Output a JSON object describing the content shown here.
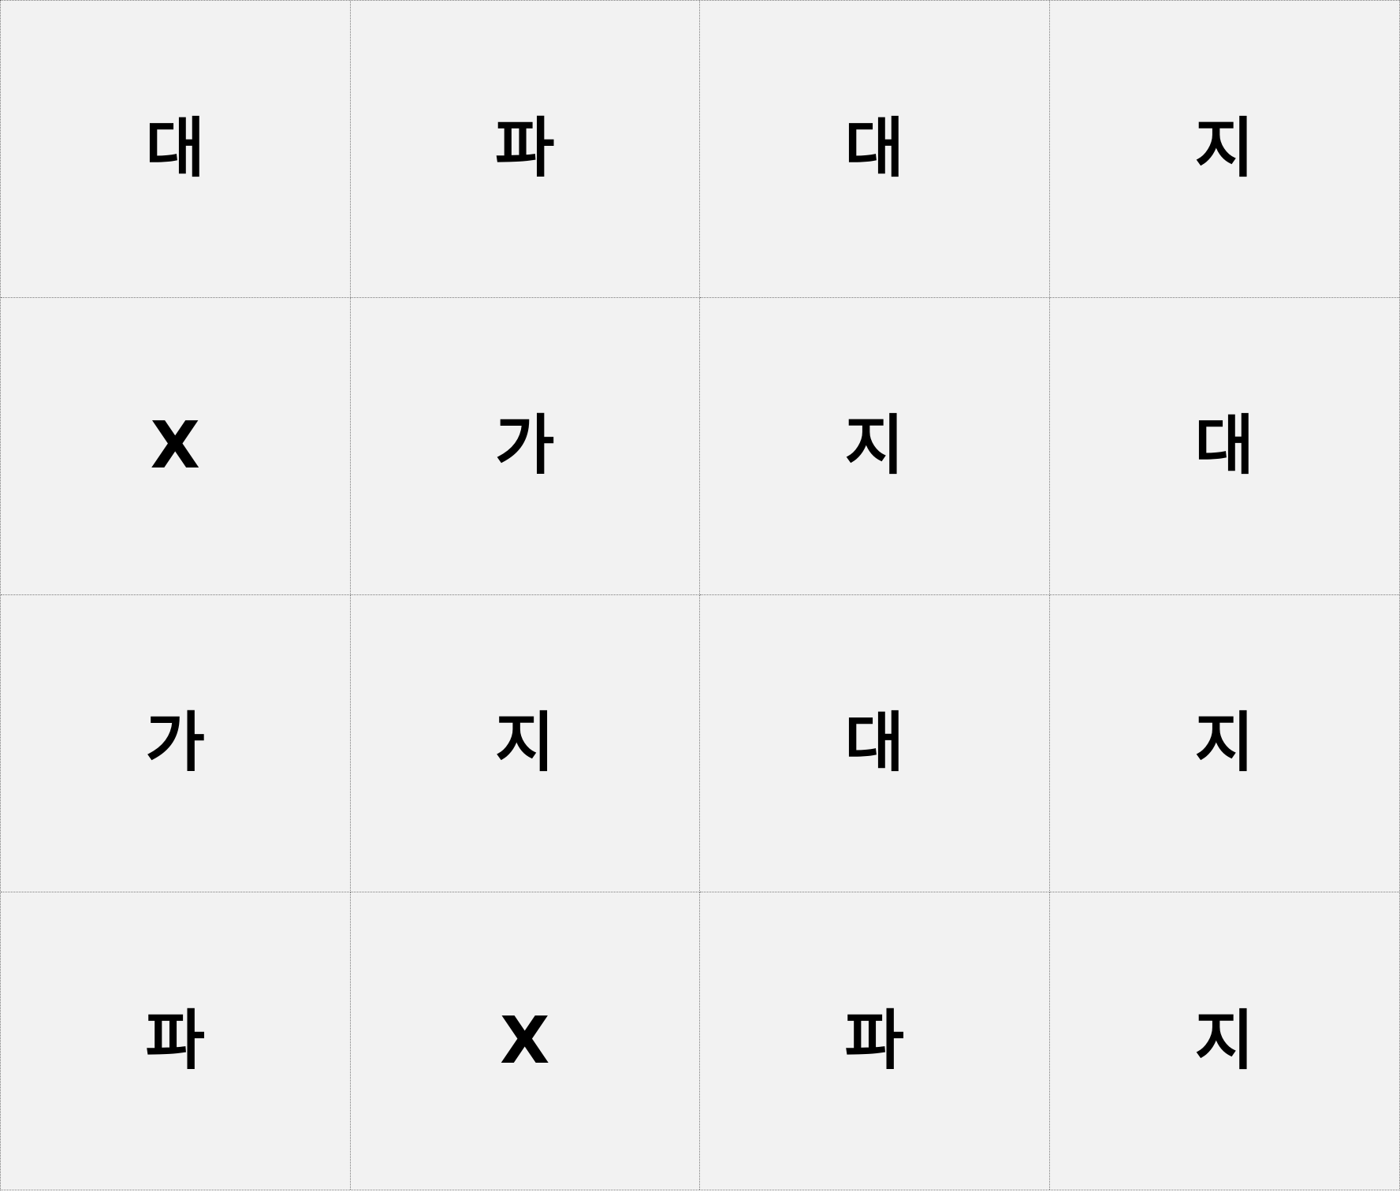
{
  "board": {
    "rows": [
      [
        "대",
        "파",
        "대",
        "지"
      ],
      [
        "X",
        "가",
        "지",
        "대"
      ],
      [
        "가",
        "지",
        "대",
        "지"
      ],
      [
        "파",
        "X",
        "파",
        "지"
      ]
    ]
  },
  "colors": {
    "cell_background": "#f2f2f2",
    "grid_line": "#7a7a7a",
    "text": "#000000"
  }
}
